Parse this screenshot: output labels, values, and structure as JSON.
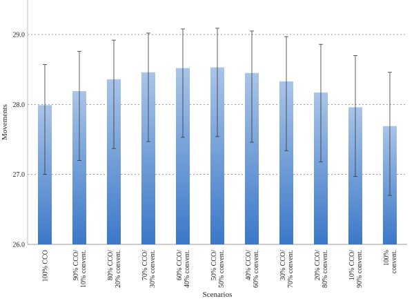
{
  "chart_data": {
    "type": "bar",
    "xlabel": "Scenarios",
    "ylabel": "Movements",
    "ylim": [
      26.0,
      29.5
    ],
    "yticks": [
      "26.0",
      "27.0",
      "28.0",
      "29.0"
    ],
    "grid": "horizontal dotted",
    "categories": [
      [
        "100% CCO"
      ],
      [
        "90% CCO/",
        "10% convent."
      ],
      [
        "80% CCO/",
        "20% convent."
      ],
      [
        "70% CCO/",
        "30% convent."
      ],
      [
        "60% CCO/",
        "40% convent."
      ],
      [
        "50% CCO/",
        "50% convent."
      ],
      [
        "40% CCO/",
        "60% convent."
      ],
      [
        "30% CCO/",
        "70% convent."
      ],
      [
        "20% CCO/",
        "80% convent."
      ],
      [
        "10% CCO/",
        "90% convent."
      ],
      [
        "100%",
        "convent."
      ]
    ],
    "values": [
      27.99,
      28.19,
      28.36,
      28.46,
      28.52,
      28.53,
      28.45,
      28.33,
      28.17,
      27.96,
      27.69
    ],
    "error_low": [
      27.0,
      27.2,
      27.37,
      27.47,
      27.53,
      27.54,
      27.46,
      27.34,
      27.18,
      26.97,
      26.7
    ],
    "error_high": [
      28.57,
      28.76,
      28.92,
      29.02,
      29.08,
      29.09,
      29.05,
      28.97,
      28.86,
      28.7,
      28.46
    ],
    "colors": {
      "bar_top": "#a9c4e8",
      "bar_bottom": "#3b78c8",
      "grid": "#9a9a9a",
      "error": "#333333"
    }
  }
}
